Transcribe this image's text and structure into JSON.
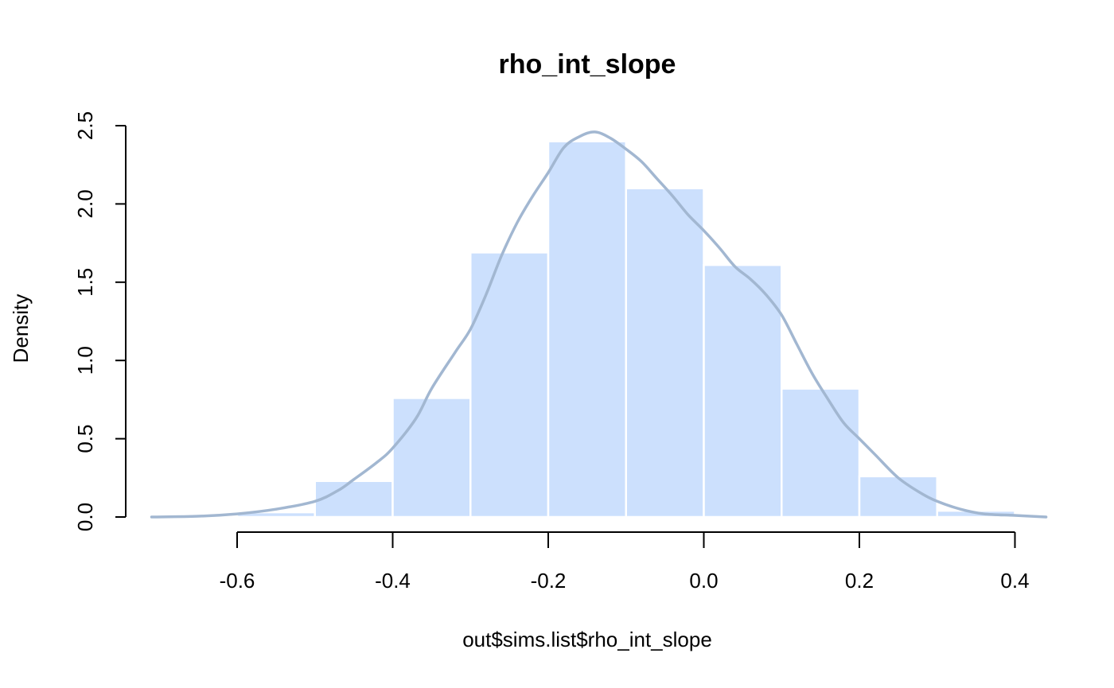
{
  "chart_data": {
    "type": "bar",
    "title": "rho_int_slope",
    "xlabel": "out$sims.list$rho_int_slope",
    "ylabel": "Density",
    "xlim": [
      -0.72,
      0.44
    ],
    "ylim": [
      0,
      2.5
    ],
    "bins": [
      {
        "start": -0.6,
        "end": -0.5,
        "density": 0.03
      },
      {
        "start": -0.5,
        "end": -0.4,
        "density": 0.23
      },
      {
        "start": -0.4,
        "end": -0.3,
        "density": 0.76
      },
      {
        "start": -0.3,
        "end": -0.2,
        "density": 1.69
      },
      {
        "start": -0.2,
        "end": -0.1,
        "density": 2.4
      },
      {
        "start": -0.1,
        "end": 0.0,
        "density": 2.1
      },
      {
        "start": 0.0,
        "end": 0.1,
        "density": 1.61
      },
      {
        "start": 0.1,
        "end": 0.2,
        "density": 0.82
      },
      {
        "start": 0.2,
        "end": 0.3,
        "density": 0.26
      },
      {
        "start": 0.3,
        "end": 0.4,
        "density": 0.04
      }
    ],
    "density_curve": {
      "x": [
        -0.71,
        -0.65,
        -0.6,
        -0.55,
        -0.5,
        -0.47,
        -0.45,
        -0.42,
        -0.4,
        -0.37,
        -0.35,
        -0.32,
        -0.3,
        -0.28,
        -0.26,
        -0.24,
        -0.22,
        -0.2,
        -0.18,
        -0.16,
        -0.14,
        -0.12,
        -0.1,
        -0.08,
        -0.06,
        -0.04,
        -0.02,
        0.0,
        0.02,
        0.04,
        0.06,
        0.08,
        0.1,
        0.12,
        0.14,
        0.16,
        0.18,
        0.2,
        0.22,
        0.25,
        0.28,
        0.3,
        0.33,
        0.36,
        0.4,
        0.44
      ],
      "y": [
        0.0,
        0.005,
        0.02,
        0.05,
        0.1,
        0.17,
        0.24,
        0.35,
        0.44,
        0.63,
        0.82,
        1.05,
        1.2,
        1.42,
        1.67,
        1.88,
        2.05,
        2.2,
        2.36,
        2.43,
        2.46,
        2.42,
        2.35,
        2.27,
        2.16,
        2.05,
        1.93,
        1.83,
        1.72,
        1.6,
        1.52,
        1.42,
        1.29,
        1.1,
        0.91,
        0.75,
        0.6,
        0.5,
        0.4,
        0.25,
        0.15,
        0.1,
        0.05,
        0.02,
        0.01,
        0.0
      ]
    },
    "xticks": [
      -0.6,
      -0.4,
      -0.2,
      0.0,
      0.2,
      0.4
    ],
    "xtick_labels": [
      "-0.6",
      "-0.4",
      "-0.2",
      "0.0",
      "0.2",
      "0.4"
    ],
    "yticks": [
      0.0,
      0.5,
      1.0,
      1.5,
      2.0,
      2.5
    ],
    "ytick_labels": [
      "0.0",
      "0.5",
      "1.0",
      "1.5",
      "2.0",
      "2.5"
    ],
    "grid": false,
    "legend": "none"
  },
  "colors": {
    "bar_fill": "#cce0fd",
    "bar_border": "#ffffff",
    "density_line": "#a2b7d1",
    "axis": "#000000"
  }
}
